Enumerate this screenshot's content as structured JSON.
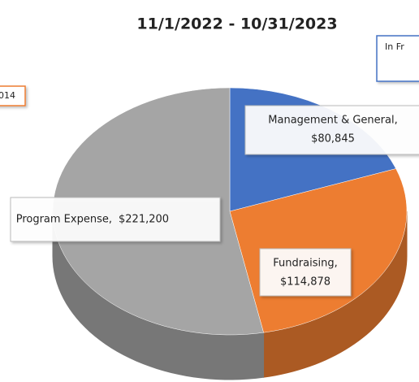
{
  "chart_data": {
    "type": "pie",
    "title": "11/1/2022 - 10/31/2023",
    "categories": [
      "Management & General,",
      "Fundraising,",
      "Program Expense,"
    ],
    "values": [
      80845,
      114878,
      221200
    ],
    "value_labels": [
      "$80,845",
      "$114,878",
      "$221,200"
    ],
    "colors": [
      "#4472c4",
      "#ed7d31",
      "#a5a5a5"
    ],
    "annotations": [
      "014",
      "In Fr"
    ]
  }
}
